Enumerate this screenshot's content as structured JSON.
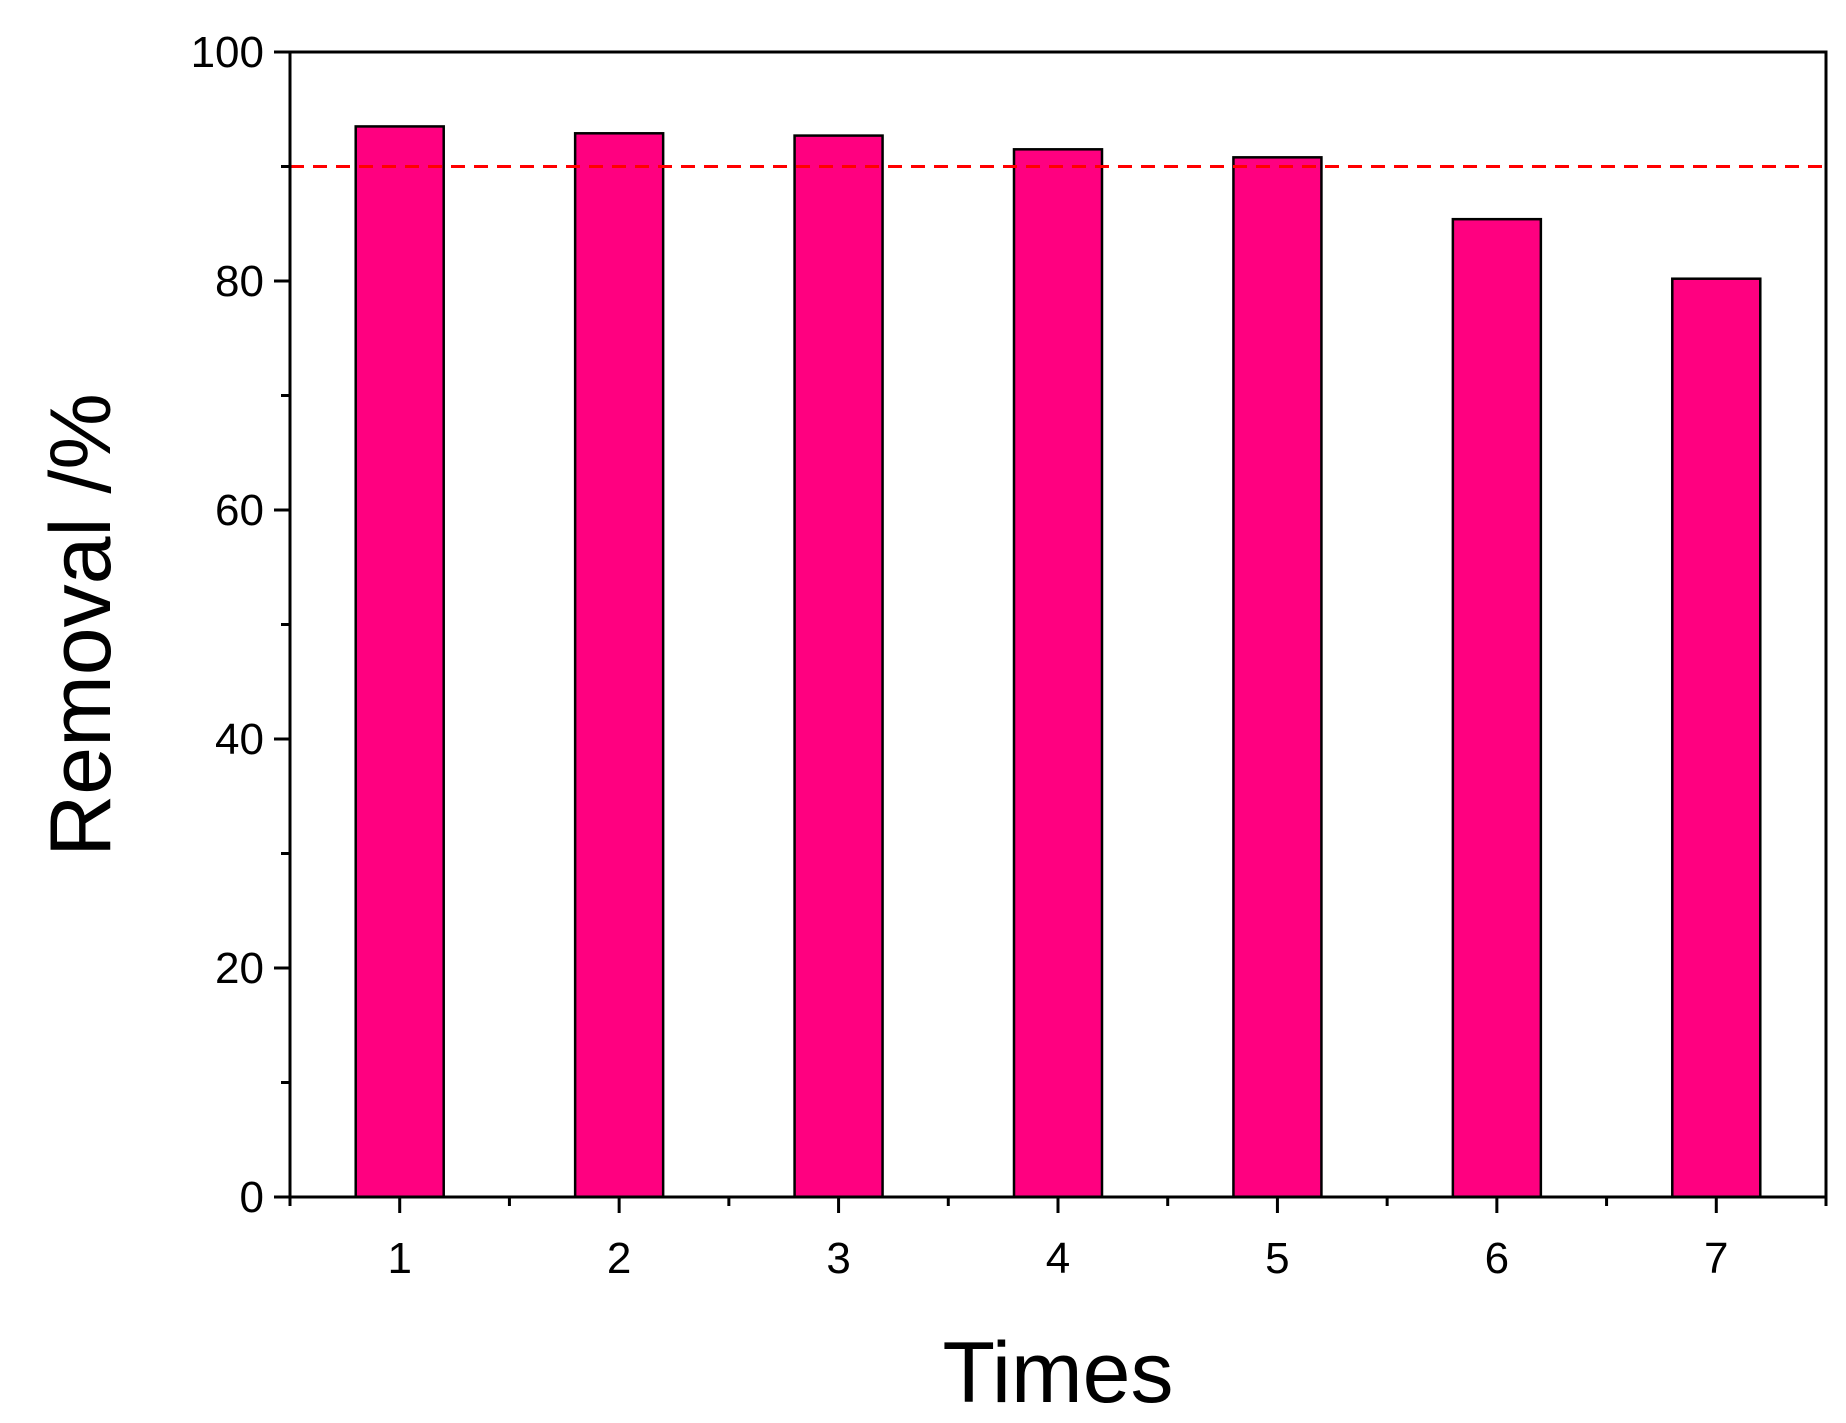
{
  "chart_data": {
    "type": "bar",
    "xlabel": "Times",
    "ylabel": "Removal /%",
    "categories": [
      "1",
      "2",
      "3",
      "4",
      "5",
      "6",
      "7"
    ],
    "values": [
      93.5,
      92.9,
      92.7,
      91.5,
      90.8,
      85.4,
      80.2
    ],
    "ylim": [
      0,
      100
    ],
    "xlim": [
      0.5,
      7.5
    ],
    "y_ticks": [
      "0",
      "20",
      "40",
      "60",
      "80",
      "100"
    ],
    "y_tick_values": [
      0,
      20,
      40,
      60,
      80,
      100
    ],
    "reference_line": {
      "value": 90,
      "style": "dashed",
      "color": "#ff0000"
    },
    "bar_color": "#ff0080",
    "grid": false,
    "legend": "none"
  }
}
